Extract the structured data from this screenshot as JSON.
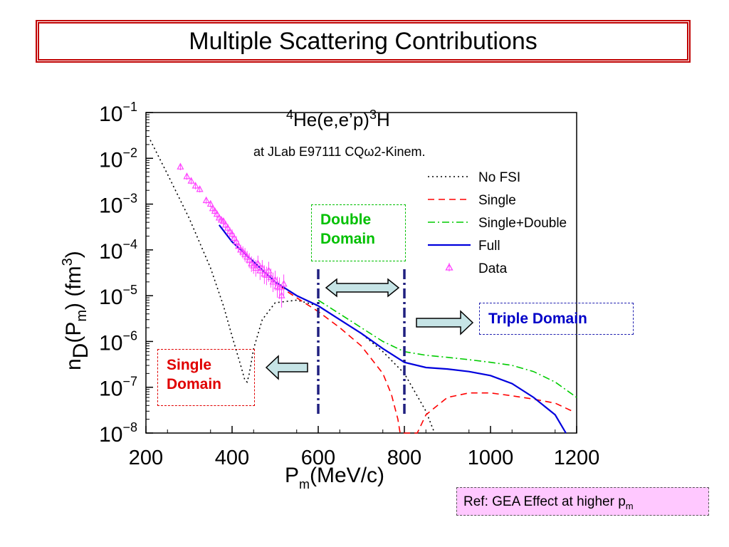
{
  "slide": {
    "title": "Multiple Scattering Contributions",
    "ref_main": "Ref: GEA Effect at higher p",
    "ref_sub": "m"
  },
  "annotations": {
    "double_domain": [
      "Double",
      "Domain"
    ],
    "single_domain": [
      "Single",
      "Domain"
    ],
    "triple_domain": "Triple Domain"
  },
  "chart_data": {
    "type": "line",
    "title_parts": {
      "pre": "4",
      "main1": "He(e,e’p)",
      "sup2": "3",
      "main2": "H"
    },
    "subtitle": "at JLab E97111 CQω2-Kinem.",
    "xlabel": {
      "main": "P",
      "sub": "m",
      "rest": "(MeV/c)"
    },
    "ylabel": {
      "n": "n",
      "D": "D",
      "rest1": "(P",
      "m": "m",
      "rest2": ") (fm",
      "exp": "3",
      "close": ")"
    },
    "xlim": [
      200,
      1200
    ],
    "ylim": [
      1e-08,
      0.1
    ],
    "log_y": true,
    "grid": false,
    "legend_position": "top-right",
    "x_ticks": [
      200,
      400,
      600,
      800,
      1000,
      1200
    ],
    "y_ticks": [
      {
        "base": "10",
        "exp": "−1",
        "value": 0.1
      },
      {
        "base": "10",
        "exp": "−2",
        "value": 0.01
      },
      {
        "base": "10",
        "exp": "−3",
        "value": 0.001
      },
      {
        "base": "10",
        "exp": "−4",
        "value": 0.0001
      },
      {
        "base": "10",
        "exp": "−5",
        "value": 1e-05
      },
      {
        "base": "10",
        "exp": "−6",
        "value": 1e-06
      },
      {
        "base": "10",
        "exp": "−7",
        "value": 1e-07
      },
      {
        "base": "10",
        "exp": "−8",
        "value": 1e-08
      }
    ],
    "domain_boundaries": [
      600,
      800
    ],
    "series": [
      {
        "name": "No FSI",
        "color": "#000000",
        "style": "dotted",
        "x": [
          210,
          250,
          300,
          350,
          380,
          400,
          420,
          430,
          435,
          440,
          450,
          470,
          500,
          550,
          600,
          650,
          700,
          750,
          800,
          850,
          870
        ],
        "y": [
          0.025,
          0.0045,
          0.0005,
          4e-05,
          6e-06,
          1.3e-06,
          3e-07,
          1.4e-07,
          1.3e-07,
          2e-07,
          7e-07,
          3e-06,
          7e-06,
          8e-06,
          6e-06,
          3e-06,
          1.5e-06,
          6e-07,
          2e-07,
          3e-08,
          1e-08
        ]
      },
      {
        "name": "Single",
        "color": "#ff0000",
        "style": "dashed",
        "x": [
          370,
          400,
          450,
          500,
          530,
          550,
          600,
          650,
          700,
          750,
          770,
          785,
          790,
          830,
          850,
          900,
          950,
          1000,
          1050,
          1100,
          1150,
          1190
        ],
        "y": [
          0.00035,
          0.00015,
          5.5e-05,
          2e-05,
          1.2e-05,
          9e-06,
          4.5e-06,
          2e-06,
          8e-07,
          2e-07,
          7e-08,
          2e-08,
          1e-08,
          1e-08,
          2.5e-08,
          6e-08,
          7.5e-08,
          7.5e-08,
          6.5e-08,
          5.5e-08,
          4.5e-08,
          3e-08
        ]
      },
      {
        "name": "Single+Double",
        "color": "#00cc00",
        "style": "dashdot",
        "x": [
          600,
          650,
          700,
          750,
          800,
          850,
          900,
          950,
          1000,
          1050,
          1100,
          1150,
          1200
        ],
        "y": [
          8e-06,
          4e-06,
          2e-06,
          1e-06,
          6e-07,
          5e-07,
          4.5e-07,
          4e-07,
          3.5e-07,
          3e-07,
          2.2e-07,
          1.3e-07,
          6e-08
        ]
      },
      {
        "name": "Full",
        "color": "#0000dd",
        "style": "solid",
        "x": [
          370,
          400,
          450,
          500,
          550,
          600,
          650,
          700,
          750,
          800,
          850,
          900,
          950,
          1000,
          1050,
          1100,
          1150,
          1175
        ],
        "y": [
          0.00035,
          0.00015,
          5.5e-05,
          2e-05,
          1e-05,
          6e-06,
          3e-06,
          1.5e-06,
          7e-07,
          3.5e-07,
          2.7e-07,
          2.5e-07,
          2.2e-07,
          1.8e-07,
          1.2e-07,
          6e-08,
          2.5e-08,
          1e-08
        ]
      },
      {
        "name": "Data",
        "color": "#ff44ff",
        "style": "markers",
        "x": [
          280,
          295,
          305,
          315,
          325,
          340,
          350,
          355,
          360,
          365,
          370,
          375,
          380,
          385,
          390,
          395,
          400,
          405,
          410,
          415,
          420,
          425,
          430,
          435,
          440,
          445,
          450,
          455,
          460,
          465,
          470,
          475,
          480,
          485,
          490,
          495,
          500,
          505,
          510,
          515,
          520
        ],
        "y": [
          0.0065,
          0.004,
          0.0032,
          0.0025,
          0.0021,
          0.0012,
          0.001,
          0.0008,
          0.0007,
          0.0006,
          0.0005,
          0.00045,
          0.00042,
          0.00035,
          0.0003,
          0.00025,
          0.00022,
          0.00018,
          0.00015,
          0.00012,
          0.0001,
          9e-05,
          8e-05,
          7e-05,
          6e-05,
          5e-05,
          4.5e-05,
          4e-05,
          5e-05,
          3.5e-05,
          4e-05,
          3e-05,
          2.8e-05,
          3.5e-05,
          2.5e-05,
          2e-05,
          2.2e-05,
          1.6e-05,
          1.5e-05,
          1e-05,
          1.8e-05
        ],
        "err_low": [
          0.0055,
          0.0034,
          0.0027,
          0.0021,
          0.0018,
          0.001,
          0.00085,
          0.00068,
          0.0006,
          0.0005,
          0.00042,
          0.00037,
          0.00034,
          0.00028,
          0.00024,
          0.0002,
          0.00017,
          0.00014,
          0.00011,
          9e-05,
          7.5e-05,
          6.5e-05,
          5.5e-05,
          5e-05,
          4e-05,
          3.3e-05,
          3e-05,
          2.6e-05,
          3.2e-05,
          2.2e-05,
          2.5e-05,
          1.8e-05,
          1.7e-05,
          2e-05,
          1.5e-05,
          1.2e-05,
          1.3e-05,
          9e-06,
          8.5e-06,
          5.5e-06,
          1e-05
        ],
        "err_high": [
          0.0077,
          0.0047,
          0.0038,
          0.003,
          0.0025,
          0.0014,
          0.0012,
          0.00095,
          0.00082,
          0.0007,
          0.0006,
          0.00054,
          0.0005,
          0.00043,
          0.00037,
          0.00031,
          0.00028,
          0.00023,
          0.0002,
          0.00016,
          0.00013,
          0.00012,
          0.00011,
          9.5e-05,
          8.5e-05,
          7.2e-05,
          6.5e-05,
          6e-05,
          7.5e-05,
          5.2e-05,
          6e-05,
          4.6e-05,
          4.3e-05,
          5.5e-05,
          3.9e-05,
          3.2e-05,
          3.5e-05,
          2.6e-05,
          2.5e-05,
          1.6e-05,
          2.9e-05
        ]
      }
    ]
  }
}
